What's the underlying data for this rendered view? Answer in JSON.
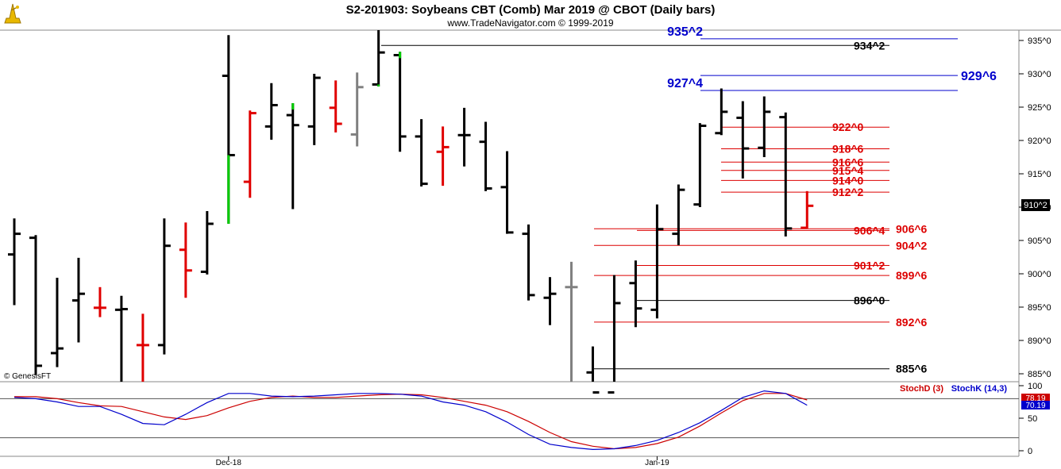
{
  "header": {
    "title": "S2-201903:  Soybeans CBT (Comb) Mar 2019 @ CBOT  (Daily bars)",
    "subtitle": "www.TradeNavigator.com © 1999-2019",
    "watermark": "© GenesisFT",
    "logo_icon": "tradenavigator-logo-icon"
  },
  "last_price_tag": "910^2",
  "colors": {
    "bar_up": "#000000",
    "bar_black": "#000000",
    "bar_red": "#e00000",
    "bar_green": "#00cc00",
    "bar_gray": "#808080",
    "level_blue": "#0000cc",
    "level_red": "#dd0000",
    "level_black": "#000000",
    "stoch_d": "#cc0000",
    "stoch_k": "#0000cc"
  },
  "chart_data": [
    {
      "type": "ohlc",
      "y_unit": "cents/bushel (fractions in 1/8)",
      "ylim": [
        882,
        937
      ],
      "y_ticks": [
        {
          "value": 885,
          "label": "885^0"
        },
        {
          "value": 890,
          "label": "890^0"
        },
        {
          "value": 895,
          "label": "895^0"
        },
        {
          "value": 900,
          "label": "900^0"
        },
        {
          "value": 905,
          "label": "905^0"
        },
        {
          "value": 910,
          "label": "910^0"
        },
        {
          "value": 915,
          "label": "915^0"
        },
        {
          "value": 920,
          "label": "920^0"
        },
        {
          "value": 925,
          "label": "925^0"
        },
        {
          "value": 930,
          "label": "930^0"
        },
        {
          "value": 935,
          "label": "935^0"
        }
      ],
      "x_labels": [
        {
          "bar": 10,
          "label": "Dec-18"
        },
        {
          "bar": 30,
          "label": "Jan-19"
        }
      ],
      "bars": [
        {
          "o": 902.9,
          "h": 908.3,
          "l": 895.3,
          "c": 906.0,
          "color": "black"
        },
        {
          "o": 905.4,
          "h": 905.8,
          "l": 884.8,
          "c": 886.2,
          "color": "black"
        },
        {
          "o": 888.1,
          "h": 899.4,
          "l": 886.0,
          "c": 888.8,
          "color": "black"
        },
        {
          "o": 896.0,
          "h": 902.4,
          "l": 889.7,
          "c": 897.0,
          "color": "black"
        },
        {
          "o": 894.9,
          "h": 898.0,
          "l": 893.5,
          "c": 894.9,
          "color": "red"
        },
        {
          "o": 894.6,
          "h": 896.7,
          "l": 882.0,
          "c": 894.7,
          "color": "black"
        },
        {
          "o": 889.3,
          "h": 894.0,
          "l": 882.0,
          "c": 889.3,
          "color": "red"
        },
        {
          "o": 889.3,
          "h": 908.3,
          "l": 887.9,
          "c": 904.2,
          "color": "black"
        },
        {
          "o": 903.6,
          "h": 907.7,
          "l": 896.4,
          "c": 900.5,
          "color": "red"
        },
        {
          "o": 900.3,
          "h": 909.4,
          "l": 899.9,
          "c": 907.5,
          "color": "black"
        },
        {
          "o": 929.7,
          "h": 935.8,
          "l": 907.5,
          "c": 917.8,
          "color": "black_green_low"
        },
        {
          "o": 913.8,
          "h": 924.5,
          "l": 911.4,
          "c": 924.1,
          "color": "red"
        },
        {
          "o": 922.1,
          "h": 928.6,
          "l": 920.1,
          "c": 925.3,
          "color": "black"
        },
        {
          "o": 923.8,
          "h": 925.6,
          "l": 909.7,
          "c": 922.3,
          "color": "black_green_high"
        },
        {
          "o": 922.1,
          "h": 930.0,
          "l": 919.3,
          "c": 929.4,
          "color": "black"
        },
        {
          "o": 924.9,
          "h": 929.0,
          "l": 921.2,
          "c": 922.5,
          "color": "red"
        },
        {
          "o": 920.9,
          "h": 930.2,
          "l": 919.1,
          "c": 928.0,
          "color": "gray"
        },
        {
          "o": 928.4,
          "h": 936.8,
          "l": 928.1,
          "c": 933.2,
          "color": "black_green_low"
        },
        {
          "o": 932.8,
          "h": 933.3,
          "l": 918.3,
          "c": 920.6,
          "color": "black_green_high"
        },
        {
          "o": 920.6,
          "h": 923.2,
          "l": 913.1,
          "c": 913.5,
          "color": "black"
        },
        {
          "o": 918.3,
          "h": 922.1,
          "l": 913.2,
          "c": 919.0,
          "color": "red"
        },
        {
          "o": 920.8,
          "h": 924.9,
          "l": 916.1,
          "c": 920.8,
          "color": "black"
        },
        {
          "o": 919.8,
          "h": 922.8,
          "l": 912.4,
          "c": 912.8,
          "color": "black"
        },
        {
          "o": 913.0,
          "h": 918.4,
          "l": 906.0,
          "c": 906.2,
          "color": "black"
        },
        {
          "o": 906.0,
          "h": 907.4,
          "l": 896.0,
          "c": 896.8,
          "color": "black"
        },
        {
          "o": 896.4,
          "h": 899.5,
          "l": 892.3,
          "c": 897.0,
          "color": "black"
        },
        {
          "o": 898.0,
          "h": 901.8,
          "l": 882.0,
          "c": 898.0,
          "color": "gray"
        },
        {
          "o": 885.2,
          "h": 889.1,
          "l": 882.0,
          "c": 882.2,
          "color": "black"
        },
        {
          "o": 882.2,
          "h": 899.8,
          "l": 882.0,
          "c": 895.6,
          "color": "black"
        },
        {
          "o": 898.6,
          "h": 902.0,
          "l": 892.0,
          "c": 894.8,
          "color": "black"
        },
        {
          "o": 894.6,
          "h": 910.4,
          "l": 893.3,
          "c": 906.7,
          "color": "black"
        },
        {
          "o": 906.0,
          "h": 913.4,
          "l": 904.3,
          "c": 912.6,
          "color": "black"
        },
        {
          "o": 910.4,
          "h": 922.6,
          "l": 910.0,
          "c": 922.2,
          "color": "black"
        },
        {
          "o": 921.1,
          "h": 927.8,
          "l": 920.8,
          "c": 924.3,
          "color": "black"
        },
        {
          "o": 923.4,
          "h": 925.9,
          "l": 914.3,
          "c": 918.8,
          "color": "black"
        },
        {
          "o": 918.9,
          "h": 926.6,
          "l": 917.5,
          "c": 924.3,
          "color": "black"
        },
        {
          "o": 923.5,
          "h": 924.2,
          "l": 905.6,
          "c": 906.8,
          "color": "black"
        },
        {
          "o": 906.9,
          "h": 912.4,
          "l": 906.8,
          "c": 910.2,
          "color": "red"
        }
      ],
      "levels": [
        {
          "value": 935.25,
          "label": "935^2",
          "color": "blue",
          "label_side": "left",
          "big": true
        },
        {
          "value": 934.25,
          "label": "934^2",
          "color": "black",
          "label_side": "right",
          "big": false
        },
        {
          "value": 929.75,
          "label": "929^6",
          "color": "blue",
          "label_side": "far",
          "big": true
        },
        {
          "value": 927.5,
          "label": "927^4",
          "color": "blue",
          "label_side": "left",
          "big": true
        },
        {
          "value": 922.0,
          "label": "922^0",
          "color": "red",
          "label_side": "mid",
          "big": false
        },
        {
          "value": 918.75,
          "label": "918^6",
          "color": "red",
          "label_side": "mid",
          "big": false
        },
        {
          "value": 916.75,
          "label": "916^6",
          "color": "red",
          "label_side": "mid",
          "big": false
        },
        {
          "value": 915.5,
          "label": "915^4",
          "color": "red",
          "label_side": "mid",
          "big": false
        },
        {
          "value": 914.0,
          "label": "914^0",
          "color": "red",
          "label_side": "mid",
          "big": false
        },
        {
          "value": 912.25,
          "label": "912^2",
          "color": "red",
          "label_side": "mid",
          "big": false
        },
        {
          "value": 906.75,
          "label": "906^6",
          "color": "red",
          "label_side": "right2",
          "big": false
        },
        {
          "value": 906.5,
          "label": "906^4",
          "color": "red",
          "label_side": "mid2",
          "big": false
        },
        {
          "value": 904.25,
          "label": "904^2",
          "color": "red",
          "label_side": "right2",
          "big": false
        },
        {
          "value": 901.25,
          "label": "901^2",
          "color": "red",
          "label_side": "mid2",
          "big": false
        },
        {
          "value": 899.75,
          "label": "899^6",
          "color": "red",
          "label_side": "right2",
          "big": false
        },
        {
          "value": 896.0,
          "label": "896^0",
          "color": "black",
          "label_side": "mid2",
          "big": false
        },
        {
          "value": 892.75,
          "label": "892^6",
          "color": "red",
          "label_side": "right2",
          "big": false
        },
        {
          "value": 885.75,
          "label": "885^6",
          "color": "black",
          "label_side": "right2",
          "big": false
        }
      ]
    },
    {
      "type": "line",
      "title": "StochD (3)  StochK (14,3)",
      "ylim": [
        0,
        100
      ],
      "y_ticks": [
        0,
        50,
        100
      ],
      "reference_lines": [
        80,
        20
      ],
      "value_tags": [
        {
          "label": "78.19",
          "color": "#cc0000"
        },
        {
          "label": "70.19",
          "color": "#0000cc"
        }
      ],
      "series": [
        {
          "name": "StochD (3)",
          "color": "#cc0000",
          "values": [
            83,
            83,
            80,
            74,
            69,
            68,
            60,
            52,
            48,
            54,
            66,
            76,
            82,
            84,
            82,
            82,
            84,
            86,
            87,
            86,
            82,
            76,
            70,
            60,
            45,
            28,
            14,
            7,
            3,
            5,
            11,
            21,
            38,
            58,
            77,
            88,
            88,
            78
          ]
        },
        {
          "name": "StochK (14,3)",
          "color": "#0000cc",
          "values": [
            82,
            80,
            75,
            68,
            68,
            56,
            42,
            40,
            56,
            74,
            88,
            88,
            84,
            83,
            84,
            86,
            88,
            88,
            87,
            84,
            75,
            70,
            60,
            44,
            25,
            10,
            5,
            2,
            3,
            8,
            16,
            28,
            43,
            62,
            82,
            92,
            88,
            70
          ]
        }
      ]
    }
  ]
}
